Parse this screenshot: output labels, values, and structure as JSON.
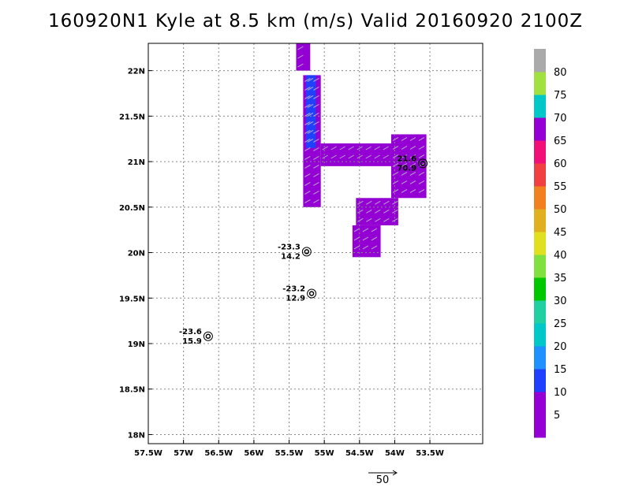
{
  "title": "160920N1 Kyle at 8.5 km (m/s) Valid 20160920 2100Z",
  "map": {
    "lon_range": [
      -57.5,
      -52.75
    ],
    "lat_range": [
      17.9,
      22.3
    ],
    "x_ticks": [
      {
        "v": -57.5,
        "label": "57.5W"
      },
      {
        "v": -57.0,
        "label": "57W"
      },
      {
        "v": -56.5,
        "label": "56.5W"
      },
      {
        "v": -56.0,
        "label": "56W"
      },
      {
        "v": -55.5,
        "label": "55.5W"
      },
      {
        "v": -55.0,
        "label": "55W"
      },
      {
        "v": -54.5,
        "label": "54.5W"
      },
      {
        "v": -54.0,
        "label": "54W"
      },
      {
        "v": -53.5,
        "label": "53.5W"
      }
    ],
    "y_ticks": [
      {
        "v": 18.0,
        "label": "18N"
      },
      {
        "v": 18.5,
        "label": "18.5N"
      },
      {
        "v": 19.0,
        "label": "19N"
      },
      {
        "v": 19.5,
        "label": "19.5N"
      },
      {
        "v": 20.0,
        "label": "20N"
      },
      {
        "v": 20.5,
        "label": "20.5N"
      },
      {
        "v": 21.0,
        "label": "21N"
      },
      {
        "v": 21.5,
        "label": "21.5N"
      },
      {
        "v": 22.0,
        "label": "22N"
      }
    ],
    "grid": true,
    "wind_regions": [
      {
        "lon": [
          -55.4,
          -55.2
        ],
        "lat": [
          22.0,
          22.3
        ],
        "color": "#9400d3"
      },
      {
        "lon": [
          -55.3,
          -55.05
        ],
        "lat": [
          20.5,
          21.95
        ],
        "color": "#9400d3"
      },
      {
        "lon": [
          -55.26,
          -55.12
        ],
        "lat": [
          21.15,
          21.95
        ],
        "color": "#2040ff"
      },
      {
        "lon": [
          -55.05,
          -54.05
        ],
        "lat": [
          20.95,
          21.2
        ],
        "color": "#9400d3"
      },
      {
        "lon": [
          -54.05,
          -53.55
        ],
        "lat": [
          20.6,
          21.3
        ],
        "color": "#9400d3"
      },
      {
        "lon": [
          -54.55,
          -53.95
        ],
        "lat": [
          20.3,
          20.6
        ],
        "color": "#9400d3"
      },
      {
        "lon": [
          -54.6,
          -54.2
        ],
        "lat": [
          19.95,
          20.3
        ],
        "color": "#9400d3"
      }
    ],
    "storm_points": [
      {
        "lon": -53.6,
        "lat": 20.98,
        "top": "21.6",
        "bottom": "70.9"
      },
      {
        "lon": -55.25,
        "lat": 20.01,
        "top": "-23.3",
        "bottom": "14.2"
      },
      {
        "lon": -55.18,
        "lat": 19.55,
        "top": "-23.2",
        "bottom": "12.9"
      },
      {
        "lon": -56.65,
        "lat": 19.08,
        "top": "-23.6",
        "bottom": "15.9"
      }
    ],
    "reference_vector_label": "50"
  },
  "colorbar": {
    "colors": [
      "#9400d3",
      "#9400d3",
      "#2040ff",
      "#1e90ff",
      "#00c8c8",
      "#20d0a0",
      "#00c800",
      "#80e040",
      "#e0e020",
      "#e0b020",
      "#f08020",
      "#f04040",
      "#f01078",
      "#9400d3",
      "#00c8c8",
      "#a0e040",
      "#aaaaaa"
    ],
    "labels": [
      "5",
      "10",
      "15",
      "20",
      "25",
      "30",
      "35",
      "40",
      "45",
      "50",
      "55",
      "60",
      "65",
      "70",
      "75",
      "80"
    ]
  }
}
